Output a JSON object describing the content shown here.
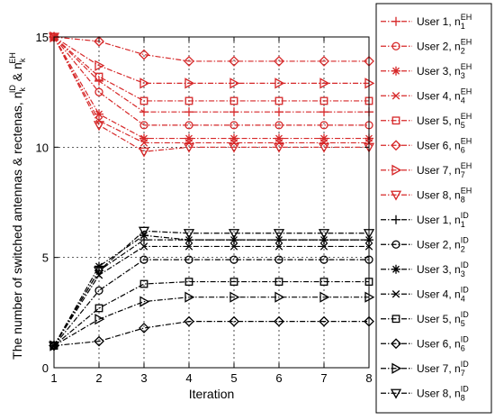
{
  "chart_data": {
    "type": "line",
    "title": "",
    "xlabel": "Iteration",
    "ylabel_parts": {
      "main": "The number of switched antennas & rectenas, ",
      "sym1": "n",
      "sub1": "k",
      "sup1": "ID",
      "amp": " & ",
      "sym2": "n",
      "sub2": "k",
      "sup2": "EH"
    },
    "xlim": [
      1,
      8
    ],
    "ylim": [
      0,
      15
    ],
    "xticks": [
      "1",
      "2",
      "3",
      "4",
      "5",
      "6",
      "7",
      "8"
    ],
    "yticks": [
      "0",
      "5",
      "10",
      "15"
    ],
    "grid": true,
    "legend_position": "right-outside",
    "x": [
      1,
      2,
      3,
      4,
      5,
      6,
      7,
      8
    ],
    "colors": {
      "EH": "#d62728",
      "ID": "#000000"
    },
    "series": [
      {
        "name": "User 1, n_1^EH",
        "label": "User 1, ",
        "sub": "1",
        "sup": "EH",
        "group": "EH",
        "marker": "plus",
        "values": [
          15,
          13.0,
          11.6,
          11.6,
          11.6,
          11.6,
          11.6,
          11.6
        ]
      },
      {
        "name": "User 2, n_2^EH",
        "label": "User 2, ",
        "sub": "2",
        "sup": "EH",
        "group": "EH",
        "marker": "circle",
        "values": [
          15,
          12.5,
          11.0,
          11.0,
          11.0,
          11.0,
          11.0,
          11.0
        ]
      },
      {
        "name": "User 3, n_3^EH",
        "label": "User 3, ",
        "sub": "3",
        "sup": "EH",
        "group": "EH",
        "marker": "star",
        "values": [
          15,
          11.5,
          10.4,
          10.4,
          10.4,
          10.4,
          10.4,
          10.4
        ]
      },
      {
        "name": "User 4, n_4^EH",
        "label": "User 4, ",
        "sub": "4",
        "sup": "EH",
        "group": "EH",
        "marker": "x",
        "values": [
          15,
          11.2,
          10.2,
          10.2,
          10.2,
          10.2,
          10.2,
          10.2
        ]
      },
      {
        "name": "User 5, n_5^EH",
        "label": "User 5, ",
        "sub": "5",
        "sup": "EH",
        "group": "EH",
        "marker": "square",
        "values": [
          15,
          13.2,
          12.1,
          12.1,
          12.1,
          12.1,
          12.1,
          12.1
        ]
      },
      {
        "name": "User 6, n_6^EH",
        "label": "User 6, ",
        "sub": "6",
        "sup": "EH",
        "group": "EH",
        "marker": "diamond",
        "values": [
          15,
          14.8,
          14.2,
          13.9,
          13.9,
          13.9,
          13.9,
          13.9
        ]
      },
      {
        "name": "User 7, n_7^EH",
        "label": "User 7, ",
        "sub": "7",
        "sup": "EH",
        "group": "EH",
        "marker": "tri-right",
        "values": [
          15,
          13.7,
          12.9,
          12.9,
          12.9,
          12.9,
          12.9,
          12.9
        ]
      },
      {
        "name": "User 8, n_8^EH",
        "label": "User 8, ",
        "sub": "8",
        "sup": "EH",
        "group": "EH",
        "marker": "tri-down",
        "values": [
          15,
          11.0,
          9.8,
          10.0,
          10.0,
          10.0,
          10.0,
          10.0
        ]
      },
      {
        "name": "User 1, n_1^ID",
        "label": "User 1, ",
        "sub": "1",
        "sup": "ID",
        "group": "ID",
        "marker": "plus",
        "values": [
          1,
          4.4,
          5.8,
          5.8,
          5.8,
          5.8,
          5.8,
          5.8
        ]
      },
      {
        "name": "User 2, n_2^ID",
        "label": "User 2, ",
        "sub": "2",
        "sup": "ID",
        "group": "ID",
        "marker": "circle",
        "values": [
          1,
          3.5,
          4.9,
          4.9,
          4.9,
          4.9,
          4.9,
          4.9
        ]
      },
      {
        "name": "User 3, n_3^ID",
        "label": "User 3, ",
        "sub": "3",
        "sup": "ID",
        "group": "ID",
        "marker": "star",
        "values": [
          1,
          4.6,
          6.0,
          5.8,
          5.8,
          5.8,
          5.8,
          5.8
        ]
      },
      {
        "name": "User 4, n_4^ID",
        "label": "User 4, ",
        "sub": "4",
        "sup": "ID",
        "group": "ID",
        "marker": "x",
        "values": [
          1,
          4.2,
          5.5,
          5.5,
          5.5,
          5.5,
          5.5,
          5.5
        ]
      },
      {
        "name": "User 5, n_5^ID",
        "label": "User 5, ",
        "sub": "5",
        "sup": "ID",
        "group": "ID",
        "marker": "square",
        "values": [
          1,
          2.7,
          3.8,
          3.9,
          3.9,
          3.9,
          3.9,
          3.9
        ]
      },
      {
        "name": "User 6, n_6^ID",
        "label": "User 6, ",
        "sub": "6",
        "sup": "ID",
        "group": "ID",
        "marker": "diamond",
        "values": [
          1,
          1.2,
          1.8,
          2.1,
          2.1,
          2.1,
          2.1,
          2.1
        ]
      },
      {
        "name": "User 7, n_7^ID",
        "label": "User 7, ",
        "sub": "7",
        "sup": "ID",
        "group": "ID",
        "marker": "tri-right",
        "values": [
          1,
          2.2,
          3.0,
          3.2,
          3.2,
          3.2,
          3.2,
          3.2
        ]
      },
      {
        "name": "User 8, n_8^ID",
        "label": "User 8, ",
        "sub": "8",
        "sup": "ID",
        "group": "ID",
        "marker": "tri-down",
        "values": [
          1,
          4.4,
          6.2,
          6.1,
          6.1,
          6.1,
          6.1,
          6.1
        ]
      }
    ]
  }
}
